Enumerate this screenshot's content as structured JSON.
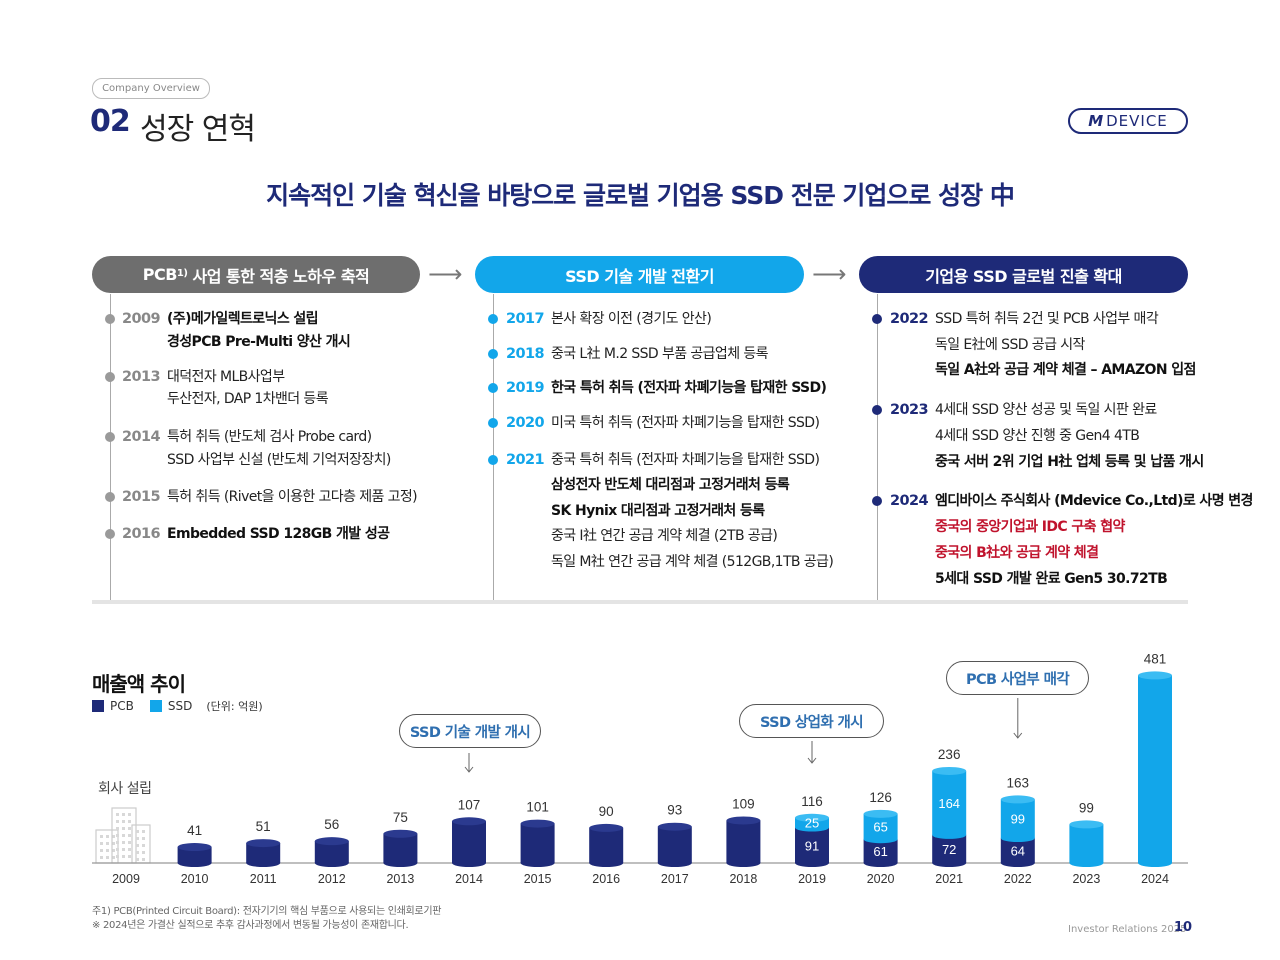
{
  "header": {
    "overview_label": "Company Overview",
    "section_number": "02",
    "section_title": "성장 연혁",
    "logo_mark": "M",
    "logo_text": "DEVICE"
  },
  "headline": "지속적인 기술 혁신을 바탕으로 글로벌 기업용 SSD 전문 기업으로 성장 中",
  "colors": {
    "navy": "#1e2a78",
    "sky": "#12a6ea",
    "gray": "#6e6e6e",
    "red": "#c0122c"
  },
  "phases": [
    {
      "label": "PCB",
      "sup": "1)",
      "label_rest": " 사업 통한 적층 노하우 축적"
    },
    {
      "label": "SSD 기술 개발 전환기"
    },
    {
      "label": "기업용 SSD 글로벌 진출 확대"
    }
  ],
  "timeline": {
    "col1": [
      {
        "year": "2009",
        "lines": [
          "(주)메가일렉트로닉스 설립",
          "경성PCB Pre-Multi 양산 개시"
        ]
      },
      {
        "year": "2013",
        "lines": [
          "대덕전자 MLB사업부",
          "두산전자, DAP 1차밴더 등록"
        ]
      },
      {
        "year": "2014",
        "lines": [
          "특허 취득 (반도체 검사 Probe card)",
          "SSD 사업부 신설 (반도체 기억저장장치)"
        ]
      },
      {
        "year": "2015",
        "lines": [
          "특허 취득 (Rivet을 이용한 고다층 제품 고정)"
        ]
      },
      {
        "year": "2016",
        "lines": [
          "Embedded SSD 128GB 개발 성공"
        ]
      }
    ],
    "col2": [
      {
        "year": "2017",
        "lines": [
          "본사 확장 이전 (경기도 안산)"
        ]
      },
      {
        "year": "2018",
        "lines": [
          "중국 L社 M.2 SSD 부품 공급업체 등록"
        ]
      },
      {
        "year": "2019",
        "lines": [
          "한국 특허 취득 (전자파 차폐기능을 탑재한 SSD)"
        ]
      },
      {
        "year": "2020",
        "lines": [
          "미국 특허 취득 (전자파 차폐기능을 탑재한 SSD)"
        ]
      },
      {
        "year": "2021",
        "lines": [
          "중국 특허 취득 (전자파 차폐기능을 탑재한 SSD)",
          "삼성전자 반도체 대리점과 고정거래처 등록",
          "SK Hynix 대리점과 고정거래처 등록",
          "중국 I社 연간 공급 계약 체결 (2TB 공급)",
          "독일 M社 연간 공급 계약 체결 (512GB,1TB 공급)"
        ]
      }
    ],
    "col3": [
      {
        "year": "2022",
        "lines": [
          "SSD 특허 취득 2건 및 PCB 사업부 매각",
          "독일 E社에 SSD 공급 시작",
          "독일 A社와 공급 계약 체결 – AMAZON 입점"
        ]
      },
      {
        "year": "2023",
        "lines": [
          "4세대 SSD 양산 성공 및 독일 시판 완료",
          "4세대 SSD 양산 진행 중 Gen4 4TB",
          "중국 서버 2위 기업 H社 업체 등록 및 납품 개시"
        ]
      },
      {
        "year": "2024",
        "lines": [
          "엠디바이스 주식회사 (Mdevice Co.,Ltd)로 사명 변경",
          "중국의 중앙기업과 IDC 구축 협약",
          "중국의 B社와 공급 계약 체결",
          "5세대 SSD 개발 완료 Gen5 30.72TB"
        ]
      }
    ]
  },
  "chart_section": {
    "title": "매출액 추이",
    "legend_pcb": "PCB",
    "legend_ssd": "SSD",
    "unit": "(단위: 억원)",
    "company_founded": "회사 설립",
    "callouts": [
      "SSD 기술 개발 개시",
      "SSD 상업화 개시",
      "PCB 사업부 매각"
    ]
  },
  "chart_data": {
    "type": "bar",
    "title": "매출액 추이",
    "unit": "억원",
    "categories": [
      "2009",
      "2010",
      "2011",
      "2012",
      "2013",
      "2014",
      "2015",
      "2016",
      "2017",
      "2018",
      "2019",
      "2020",
      "2021",
      "2022",
      "2023",
      "2024"
    ],
    "series": [
      {
        "name": "PCB",
        "values": [
          null,
          41,
          51,
          56,
          75,
          107,
          101,
          90,
          93,
          109,
          91,
          61,
          72,
          64,
          0,
          0
        ]
      },
      {
        "name": "SSD",
        "values": [
          null,
          0,
          0,
          0,
          0,
          0,
          0,
          0,
          0,
          0,
          25,
          65,
          164,
          99,
          99,
          481
        ]
      }
    ],
    "totals": [
      null,
      41,
      51,
      56,
      75,
      107,
      101,
      90,
      93,
      109,
      116,
      126,
      236,
      163,
      99,
      481
    ],
    "stacked": true
  },
  "footnotes": [
    "주1) PCB(Printed Circuit Board): 전자기기의 핵심 부품으로 사용되는 인쇄회로기판",
    "※ 2024년은 가결산 실적으로 추후 감사과정에서 변동될 가능성이 존재합니다."
  ],
  "footer": {
    "ir_label": "Investor Relations 2025",
    "page": "10"
  }
}
